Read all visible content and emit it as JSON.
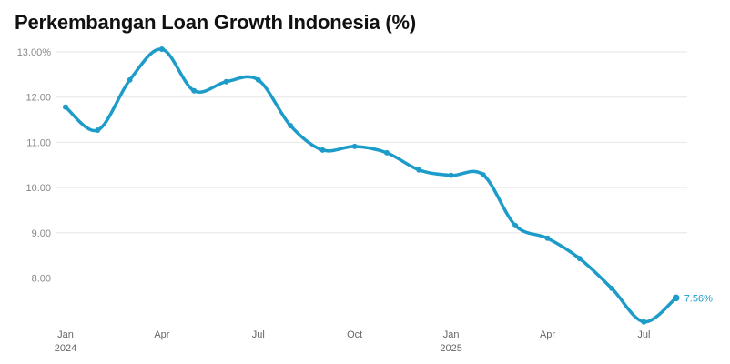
{
  "chart_data": {
    "type": "line",
    "title": "Perkembangan Loan Growth Indonesia (%)",
    "xlabel": "",
    "ylabel": "",
    "months": [
      "Jan 2024",
      "Feb 2024",
      "Mar 2024",
      "Apr 2024",
      "May 2024",
      "Jun 2024",
      "Jul 2024",
      "Aug 2024",
      "Sep 2024",
      "Oct 2024",
      "Nov 2024",
      "Dec 2024",
      "Jan 2025",
      "Feb 2025",
      "Mar 2025",
      "Apr 2025",
      "May 2025",
      "Jun 2025",
      "Jul 2025",
      "Aug 2025"
    ],
    "series": [
      {
        "name": "Loan Growth",
        "values": [
          11.78,
          11.27,
          12.38,
          13.06,
          12.14,
          12.34,
          12.38,
          11.37,
          10.83,
          10.91,
          10.77,
          10.39,
          10.27,
          10.28,
          9.16,
          8.88,
          8.43,
          7.77,
          7.03,
          7.56
        ],
        "color": "#1d9bc9"
      }
    ],
    "yticks": [
      {
        "value": 13,
        "label": "13.00%"
      },
      {
        "value": 12,
        "label": "12.00"
      },
      {
        "value": 11,
        "label": "11.00"
      },
      {
        "value": 10,
        "label": "10.00"
      },
      {
        "value": 9,
        "label": "9.00"
      },
      {
        "value": 8,
        "label": "8.00"
      }
    ],
    "xticks": [
      {
        "index": 0,
        "label": "Jan",
        "sub": "2024"
      },
      {
        "index": 3,
        "label": "Apr",
        "sub": ""
      },
      {
        "index": 6,
        "label": "Jul",
        "sub": ""
      },
      {
        "index": 9,
        "label": "Oct",
        "sub": ""
      },
      {
        "index": 12,
        "label": "Jan",
        "sub": "2025"
      },
      {
        "index": 15,
        "label": "Apr",
        "sub": ""
      },
      {
        "index": 18,
        "label": "Jul",
        "sub": ""
      }
    ],
    "last_label": "7.56%",
    "ylim": [
      7,
      13.1
    ],
    "grid": true
  }
}
